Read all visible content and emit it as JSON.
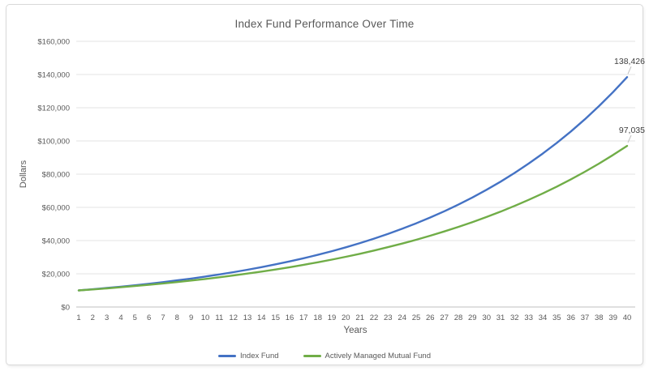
{
  "chart_data": {
    "type": "line",
    "title": "Index Fund Performance Over Time",
    "xlabel": "Years",
    "ylabel": "Dollars",
    "x": [
      1,
      2,
      3,
      4,
      5,
      6,
      7,
      8,
      9,
      10,
      11,
      12,
      13,
      14,
      15,
      16,
      17,
      18,
      19,
      20,
      21,
      22,
      23,
      24,
      25,
      26,
      27,
      28,
      29,
      30,
      31,
      32,
      33,
      34,
      35,
      36,
      37,
      38,
      39,
      40
    ],
    "ylim": [
      0,
      160000
    ],
    "ytick_step": 20000,
    "ytick_labels": [
      "$0",
      "$20,000",
      "$40,000",
      "$60,000",
      "$80,000",
      "$100,000",
      "$120,000",
      "$140,000",
      "$160,000"
    ],
    "grid": true,
    "legend_position": "bottom",
    "series": [
      {
        "name": "Index Fund",
        "color": "#4472C4",
        "end_label": "138,426",
        "final_value": 138426,
        "values": [
          10000,
          10697,
          11443,
          12240,
          13093,
          14006,
          14982,
          16026,
          17143,
          18338,
          19617,
          20984,
          22446,
          24011,
          25685,
          27475,
          29390,
          31438,
          33629,
          35973,
          38481,
          41163,
          44032,
          47101,
          50384,
          53895,
          57652,
          61670,
          65969,
          70567,
          75485,
          80746,
          86374,
          92395,
          98835,
          105723,
          113092,
          120975,
          129407,
          138426
        ]
      },
      {
        "name": "Actively Managed Mutual Fund",
        "color": "#70AD47",
        "end_label": "97,035",
        "final_value": 97035,
        "values": [
          10000,
          10600,
          11236,
          11910,
          12625,
          13382,
          14185,
          15036,
          15938,
          16895,
          17908,
          18983,
          20122,
          21329,
          22609,
          23966,
          25404,
          26928,
          28543,
          30256,
          32071,
          33996,
          36035,
          38198,
          40489,
          42919,
          45494,
          48223,
          51117,
          54184,
          57435,
          60881,
          64534,
          68406,
          72510,
          76861,
          81473,
          86361,
          91543,
          97035
        ]
      }
    ]
  },
  "colors": {
    "accent_blue": "#4472C4",
    "accent_green": "#70AD47",
    "gridline": "#e3e3e3",
    "axis_line": "#bfbfbf",
    "text": "#595959",
    "card_border": "#d9d9d9",
    "background": "#ffffff"
  }
}
